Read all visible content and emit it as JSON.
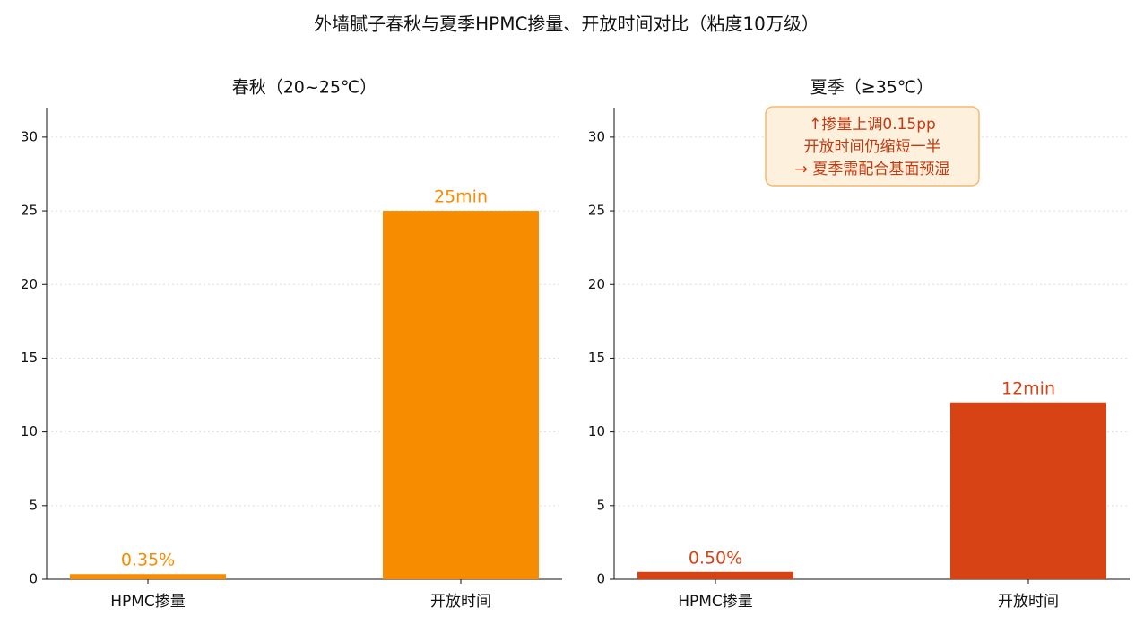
{
  "title": "外墙腻子春秋与夏季HPMC掺量、开放时间对比（粘度10万级）",
  "chart_data": [
    {
      "type": "bar",
      "title": "春秋（20~25℃）",
      "categories": [
        "HPMC掺量",
        "开放时间"
      ],
      "values": [
        0.35,
        25
      ],
      "value_labels": [
        "0.35%",
        "25min"
      ],
      "color": "#f78c00",
      "ylim": [
        0,
        32
      ],
      "yticks": [
        0,
        5,
        10,
        15,
        20,
        25,
        30
      ],
      "grid": true
    },
    {
      "type": "bar",
      "title": "夏季（≥35℃）",
      "categories": [
        "HPMC掺量",
        "开放时间"
      ],
      "values": [
        0.5,
        12
      ],
      "value_labels": [
        "0.50%",
        "12min"
      ],
      "color": "#d84315",
      "ylim": [
        0,
        32
      ],
      "yticks": [
        0,
        5,
        10,
        15,
        20,
        25,
        30
      ],
      "grid": true,
      "annotation": [
        "↑掺量上调0.15pp",
        "开放时间仍缩短一半",
        "→ 夏季需配合基面预湿"
      ]
    }
  ]
}
